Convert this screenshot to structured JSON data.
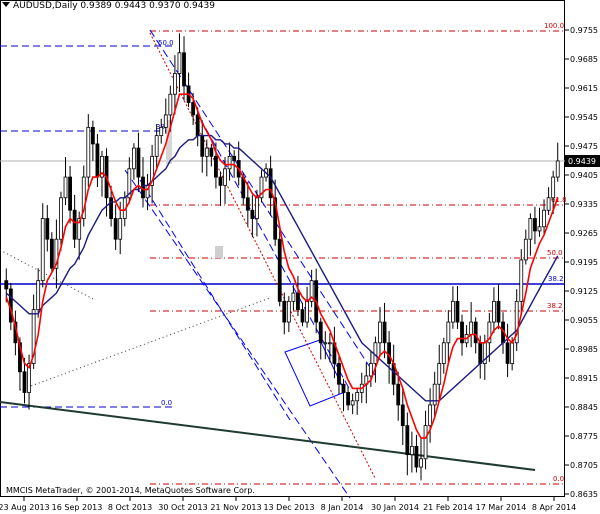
{
  "header": {
    "symbol_line": "AUDUSD,Daily  0.9389 0.9443 0.9370 0.9439"
  },
  "copyright": "MMCIS MetaTrader, © 2001-2014, MetaQuotes Software Corp.",
  "current_price_label": "0.9439",
  "colors": {
    "candles": "#000000",
    "fast_ma": "#ff0000",
    "slow_ma": "#1a1a80",
    "fib_red": "#cc0000",
    "fib_blue": "#0000cc",
    "channel_blue": "#0000ff",
    "trendline": "#1f3a2f",
    "level_line": "#0000cc"
  },
  "chart_data": {
    "type": "candlestick",
    "instrument": "AUDUSD",
    "timeframe": "Daily",
    "last_bar": {
      "open": 0.9389,
      "high": 0.9443,
      "low": 0.937,
      "close": 0.9439
    },
    "ylim": [
      0.8635,
      0.9755
    ],
    "y_ticks": [
      "0.9755",
      "0.9685",
      "0.9615",
      "0.9545",
      "0.9475",
      "0.9405",
      "0.9335",
      "0.9265",
      "0.9195",
      "0.9125",
      "0.9055",
      "0.8985",
      "0.8915",
      "0.8845",
      "0.8775",
      "0.8705",
      "0.8635"
    ],
    "x_ticks": [
      "23 Aug 2013",
      "16 Sep 2013",
      "8 Oct 2013",
      "30 Oct 2013",
      "21 Nov 2013",
      "13 Dec 2013",
      "8 Jan 2014",
      "30 Jan 2014",
      "21 Feb 2014",
      "17 Mar 2014",
      "8 Apr 2014"
    ],
    "fib_red_labels": [
      "100.0",
      "61.8",
      "50.0",
      "38.2",
      "0.0"
    ],
    "fib_blue_labels": [
      "50.0",
      "38.2",
      "0.0"
    ],
    "horizontal_level_label": "38.2",
    "closes": [
      0.913,
      0.905,
      0.9,
      0.893,
      0.888,
      0.895,
      0.908,
      0.915,
      0.93,
      0.925,
      0.918,
      0.925,
      0.935,
      0.94,
      0.932,
      0.925,
      0.93,
      0.94,
      0.952,
      0.948,
      0.94,
      0.945,
      0.935,
      0.93,
      0.925,
      0.93,
      0.935,
      0.942,
      0.947,
      0.94,
      0.935,
      0.938,
      0.945,
      0.95,
      0.952,
      0.955,
      0.96,
      0.965,
      0.97,
      0.962,
      0.958,
      0.955,
      0.95,
      0.945,
      0.947,
      0.945,
      0.94,
      0.938,
      0.942,
      0.945,
      0.944,
      0.94,
      0.935,
      0.932,
      0.93,
      0.935,
      0.94,
      0.942,
      0.935,
      0.925,
      0.91,
      0.905,
      0.91,
      0.912,
      0.908,
      0.905,
      0.91,
      0.915,
      0.905,
      0.9,
      0.9,
      0.9,
      0.895,
      0.89,
      0.888,
      0.885,
      0.886,
      0.888,
      0.89,
      0.892,
      0.895,
      0.9,
      0.905,
      0.9,
      0.895,
      0.89,
      0.885,
      0.88,
      0.873,
      0.875,
      0.87,
      0.872,
      0.88,
      0.885,
      0.89,
      0.895,
      0.9,
      0.905,
      0.91,
      0.905,
      0.9,
      0.902,
      0.905,
      0.9,
      0.895,
      0.9,
      0.905,
      0.91,
      0.905,
      0.9,
      0.895,
      0.9,
      0.91,
      0.92,
      0.925,
      0.93,
      0.927,
      0.928,
      0.932,
      0.935,
      0.94,
      0.9439
    ],
    "series": [
      {
        "role": "fast moving average",
        "values": [
          0.911,
          0.908,
          0.904,
          0.899,
          0.895,
          0.894,
          0.897,
          0.902,
          0.91,
          0.915,
          0.917,
          0.919,
          0.923,
          0.928,
          0.93,
          0.929,
          0.929,
          0.932,
          0.937,
          0.94,
          0.94,
          0.941,
          0.94,
          0.937,
          0.934,
          0.932,
          0.932,
          0.934,
          0.937,
          0.938,
          0.937,
          0.937,
          0.939,
          0.942,
          0.945,
          0.948,
          0.952,
          0.956,
          0.96,
          0.96,
          0.96,
          0.959,
          0.956,
          0.953,
          0.951,
          0.949,
          0.946,
          0.944,
          0.943,
          0.943,
          0.943,
          0.942,
          0.94,
          0.938,
          0.936,
          0.935,
          0.936,
          0.937,
          0.937,
          0.934,
          0.928,
          0.922,
          0.918,
          0.916,
          0.913,
          0.911,
          0.91,
          0.911,
          0.91,
          0.907,
          0.905,
          0.903,
          0.9,
          0.897,
          0.894,
          0.891,
          0.889,
          0.889,
          0.889,
          0.89,
          0.891,
          0.894,
          0.897,
          0.898,
          0.897,
          0.895,
          0.892,
          0.889,
          0.885,
          0.882,
          0.879,
          0.877,
          0.877,
          0.879,
          0.882,
          0.886,
          0.89,
          0.895,
          0.899,
          0.901,
          0.901,
          0.901,
          0.902,
          0.902,
          0.9,
          0.9,
          0.901,
          0.903,
          0.904,
          0.903,
          0.901,
          0.9,
          0.902,
          0.907,
          0.912,
          0.918,
          0.921,
          0.924,
          0.926,
          0.929,
          0.932,
          0.935
        ]
      },
      {
        "role": "slow moving average",
        "values": [
          0.912,
          0.911,
          0.91,
          0.909,
          0.908,
          0.907,
          0.907,
          0.907,
          0.909,
          0.91,
          0.911,
          0.912,
          0.914,
          0.916,
          0.918,
          0.919,
          0.921,
          0.923,
          0.926,
          0.928,
          0.93,
          0.932,
          0.933,
          0.934,
          0.934,
          0.935,
          0.935,
          0.936,
          0.937,
          0.937,
          0.938,
          0.938,
          0.939,
          0.94,
          0.941,
          0.942,
          0.944,
          0.945,
          0.947,
          0.948,
          0.949,
          0.949,
          0.95,
          0.95,
          0.95,
          0.95,
          0.949,
          0.949,
          0.948,
          0.948,
          0.947,
          0.947,
          0.946,
          0.945,
          0.944,
          0.943,
          0.942,
          0.941,
          0.94,
          0.938,
          0.936,
          0.934,
          0.932,
          0.93,
          0.928,
          0.926,
          0.924,
          0.922,
          0.92,
          0.918,
          0.916,
          0.914,
          0.912,
          0.91,
          0.908,
          0.906,
          0.904,
          0.902,
          0.9,
          0.899,
          0.898,
          0.897,
          0.896,
          0.895,
          0.894,
          0.893,
          0.892,
          0.891,
          0.89,
          0.889,
          0.888,
          0.887,
          0.886,
          0.886,
          0.886,
          0.886,
          0.887,
          0.888,
          0.889,
          0.89,
          0.891,
          0.892,
          0.893,
          0.894,
          0.895,
          0.896,
          0.897,
          0.898,
          0.899,
          0.9,
          0.901,
          0.902,
          0.903,
          0.905,
          0.907,
          0.909,
          0.911,
          0.913,
          0.915,
          0.917,
          0.919,
          0.921
        ]
      }
    ]
  }
}
